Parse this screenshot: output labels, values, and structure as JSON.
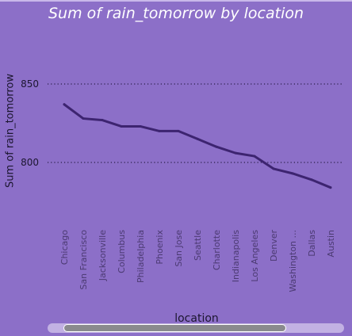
{
  "chart_data": {
    "type": "line",
    "title": "Sum of rain_tomorrow by location",
    "xlabel": "location",
    "ylabel": "Sum of rain_tomorrow",
    "categories": [
      "Chicago",
      "San Francisco",
      "Jacksonville",
      "Columbus",
      "Philadelphia",
      "Phoenix",
      "San Jose",
      "Seattle",
      "Charlotte",
      "Indianapolis",
      "Los Angeles",
      "Denver",
      "Washington ...",
      "Dallas",
      "Austin"
    ],
    "series": [
      {
        "values": [
          837,
          828,
          827,
          823,
          823,
          820,
          820,
          815,
          810,
          806,
          804,
          796,
          793,
          789,
          784
        ]
      }
    ],
    "yticks": [
      800,
      850
    ],
    "ylim": [
      768,
      880
    ],
    "grid": "horizontal dotted",
    "colors": {
      "background": "#8c6fc8",
      "line": "#3d2470",
      "gridline": "#2a1e48",
      "text": "#1c1630",
      "title": "#ffffff"
    }
  }
}
